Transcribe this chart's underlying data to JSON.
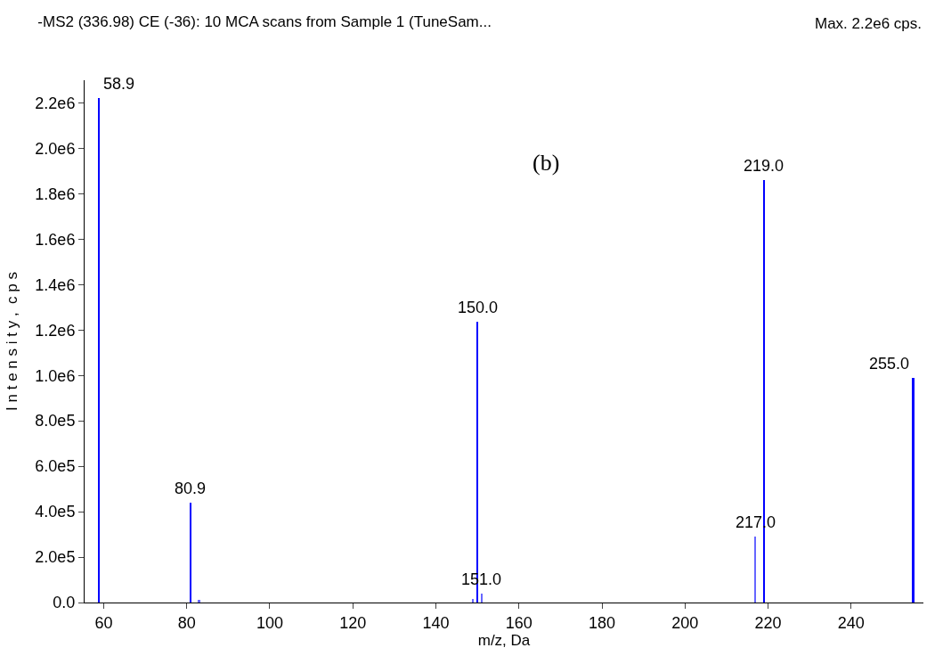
{
  "chart_data": {
    "type": "bar",
    "title": "-MS2 (336.98) CE (-36): 10 MCA scans from Sample 1 (TuneSam...",
    "xlabel": "m/z, Da",
    "ylabel": "I n t e n s i t y ,  c p s",
    "annotations": [
      "Max. 2.2e6 cps.",
      "(b)",
      {
        "text": "58.9",
        "x": 58.9,
        "y": 2220000
      },
      {
        "text": "80.9",
        "x": 80.9,
        "y": 440000
      },
      {
        "text": "150.0",
        "x": 150.0,
        "y": 1235000
      },
      {
        "text": "151.0",
        "x": 151.0,
        "y": 38000
      },
      {
        "text": "217.0",
        "x": 217.0,
        "y": 290000
      },
      {
        "text": "219.0",
        "x": 219.0,
        "y": 1860000
      },
      {
        "text": "255.0",
        "x": 255.0,
        "y": 990000
      }
    ],
    "x": [
      58.9,
      80.9,
      83.0,
      149.0,
      150.0,
      151.0,
      217.0,
      219.0,
      255.0
    ],
    "values": [
      2220000,
      440000,
      12000,
      15000,
      1235000,
      38000,
      290000,
      1860000,
      990000
    ],
    "colors": [
      "#0000ff",
      "#0000ff",
      "#6666ff",
      "#6666ff",
      "#0000ff",
      "#6666ff",
      "#6666ff",
      "#0000ff",
      "#0000ff"
    ],
    "xlim": [
      55.4,
      257.4
    ],
    "xticks": [
      60,
      80,
      100,
      120,
      140,
      160,
      180,
      200,
      220,
      240
    ],
    "ylim": [
      0,
      2300000
    ],
    "yticks": [
      {
        "value": 0,
        "label": "0.0"
      },
      {
        "value": 200000,
        "label": "2.0e5"
      },
      {
        "value": 400000,
        "label": "4.0e5"
      },
      {
        "value": 600000,
        "label": "6.0e5"
      },
      {
        "value": 800000,
        "label": "8.0e5"
      },
      {
        "value": 1000000,
        "label": "1.0e6"
      },
      {
        "value": 1200000,
        "label": "1.2e6"
      },
      {
        "value": 1400000,
        "label": "1.4e6"
      },
      {
        "value": 1600000,
        "label": "1.6e6"
      },
      {
        "value": 1800000,
        "label": "1.8e6"
      },
      {
        "value": 2000000,
        "label": "2.0e6"
      },
      {
        "value": 2200000,
        "label": "2.2e6"
      }
    ]
  }
}
